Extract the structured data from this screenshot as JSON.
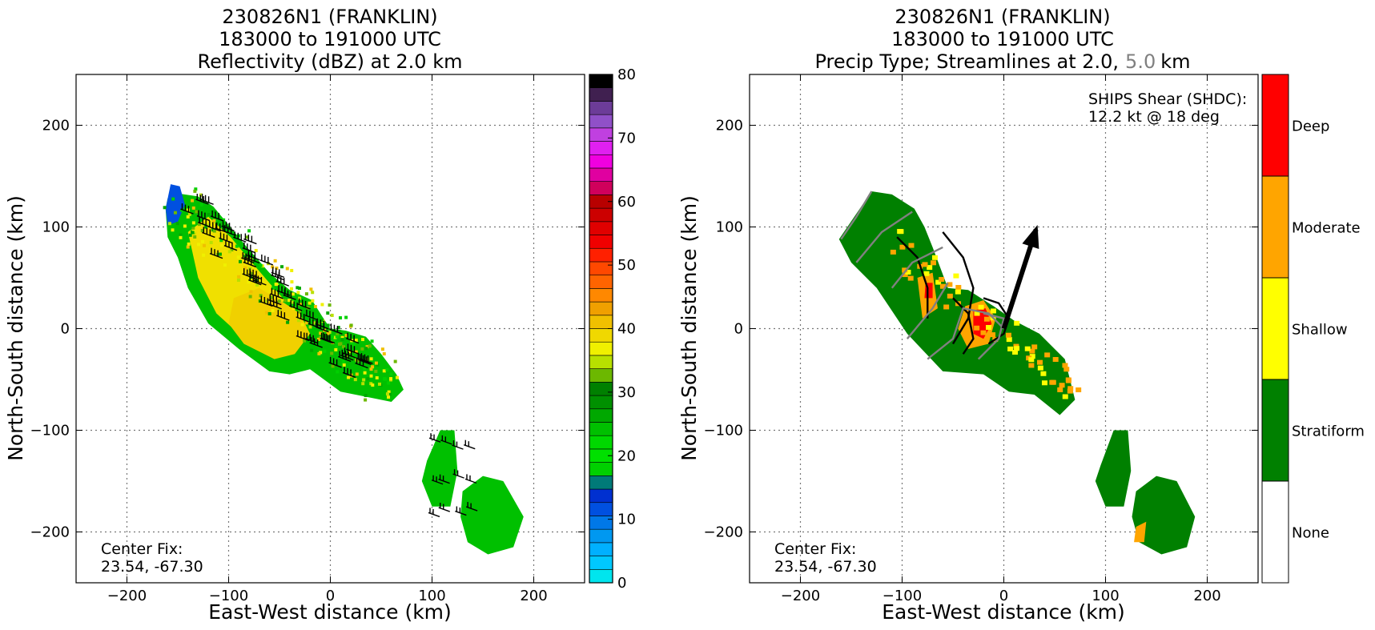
{
  "chart_data": [
    {
      "type": "heatmap",
      "storm_id": "230826N1 (FRANKLIN)",
      "title_lines": [
        "230826N1 (FRANKLIN)",
        "183000 to 191000 UTC",
        "Reflectivity (dBZ) at 2.0 km"
      ],
      "xlabel": "East-West distance (km)",
      "ylabel": "North-South distance (km)",
      "xlim": [
        -250,
        250
      ],
      "ylim": [
        -250,
        250
      ],
      "xticks": [
        -200,
        -100,
        0,
        100,
        200
      ],
      "xtick_labels": [
        "−200",
        "−100",
        "0",
        "100",
        "200"
      ],
      "yticks": [
        -200,
        -100,
        0,
        100,
        200
      ],
      "ytick_labels": [
        "−200",
        "−100",
        "0",
        "100",
        "200"
      ],
      "grid": true,
      "center_fix_label": "Center Fix:",
      "center_fix_value": "23.54, -67.30",
      "colorbar": {
        "min": 0,
        "max": 80,
        "step": 2.5,
        "ticks": [
          0,
          10,
          20,
          30,
          40,
          50,
          60,
          70,
          80
        ],
        "colors": [
          "#00e5ee",
          "#00c8ff",
          "#00b0ff",
          "#0098f0",
          "#0078e8",
          "#0050e0",
          "#0030d0",
          "#007a78",
          "#00d000",
          "#00e000",
          "#00d800",
          "#00c000",
          "#00a800",
          "#009000",
          "#008000",
          "#6cb800",
          "#b8e000",
          "#f0f000",
          "#f0d800",
          "#f0c000",
          "#f0a000",
          "#ff8800",
          "#ff6400",
          "#ff4800",
          "#ff2000",
          "#f00000",
          "#e00000",
          "#cc0000",
          "#b80000",
          "#d0005c",
          "#e000a0",
          "#f000e0",
          "#e020f0",
          "#c040e0",
          "#9050c8",
          "#6c3c98",
          "#402050",
          "#000000"
        ]
      },
      "echo_regions": [
        {
          "name": "main-band",
          "polygon": [
            [
              -162,
              118
            ],
            [
              -160,
              128
            ],
            [
              -150,
              133
            ],
            [
              -130,
              130
            ],
            [
              -115,
              120
            ],
            [
              -100,
              102
            ],
            [
              -82,
              80
            ],
            [
              -60,
              55
            ],
            [
              -40,
              38
            ],
            [
              -18,
              28
            ],
            [
              -8,
              12
            ],
            [
              0,
              0
            ],
            [
              15,
              -2
            ],
            [
              35,
              -8
            ],
            [
              50,
              -25
            ],
            [
              65,
              -45
            ],
            [
              72,
              -60
            ],
            [
              60,
              -72
            ],
            [
              40,
              -68
            ],
            [
              10,
              -62
            ],
            [
              -20,
              -40
            ],
            [
              -40,
              -45
            ],
            [
              -60,
              -42
            ],
            [
              -90,
              -20
            ],
            [
              -120,
              5
            ],
            [
              -140,
              40
            ],
            [
              -150,
              70
            ],
            [
              -160,
              90
            ]
          ],
          "color": "#00c000"
        },
        {
          "name": "core-north",
          "polygon": [
            [
              -140,
              95
            ],
            [
              -120,
              110
            ],
            [
              -98,
              90
            ],
            [
              -78,
              66
            ],
            [
              -60,
              45
            ],
            [
              -45,
              28
            ],
            [
              -62,
              10
            ],
            [
              -90,
              -5
            ],
            [
              -112,
              15
            ],
            [
              -130,
              50
            ]
          ],
          "color": "#f0e000"
        },
        {
          "name": "core-center",
          "polygon": [
            [
              -95,
              30
            ],
            [
              -70,
              40
            ],
            [
              -45,
              25
            ],
            [
              -30,
              15
            ],
            [
              -20,
              -5
            ],
            [
              -35,
              -25
            ],
            [
              -55,
              -30
            ],
            [
              -85,
              -15
            ],
            [
              -100,
              5
            ]
          ],
          "color": "#f0d000"
        },
        {
          "name": "blue-edge",
          "polygon": [
            [
              -162,
              118
            ],
            [
              -157,
              142
            ],
            [
              -148,
              140
            ],
            [
              -143,
              122
            ],
            [
              -150,
              105
            ],
            [
              -160,
              102
            ]
          ],
          "color": "#0050e0"
        },
        {
          "name": "south-cell-a",
          "polygon": [
            [
              95,
              -130
            ],
            [
              108,
              -100
            ],
            [
              122,
              -100
            ],
            [
              125,
              -140
            ],
            [
              118,
              -175
            ],
            [
              100,
              -175
            ],
            [
              90,
              -150
            ]
          ],
          "color": "#00c000"
        },
        {
          "name": "south-cell-b",
          "polygon": [
            [
              130,
              -160
            ],
            [
              150,
              -145
            ],
            [
              170,
              -150
            ],
            [
              190,
              -185
            ],
            [
              180,
              -215
            ],
            [
              155,
              -222
            ],
            [
              135,
              -210
            ],
            [
              128,
              -185
            ]
          ],
          "color": "#00c000"
        }
      ]
    },
    {
      "type": "heatmap",
      "title_lines": [
        "230826N1 (FRANKLIN)",
        "183000 to 191000 UTC",
        "Precip Type; Streamlines at 2.0,",
        "5.0",
        "km"
      ],
      "title_highlight_color": "#808080",
      "xlabel": "East-West distance (km)",
      "ylabel": "North-South distance (km)",
      "xlim": [
        -250,
        250
      ],
      "ylim": [
        -250,
        250
      ],
      "xticks": [
        -200,
        -100,
        0,
        100,
        200
      ],
      "xtick_labels": [
        "−200",
        "−100",
        "0",
        "100",
        "200"
      ],
      "yticks": [
        -200,
        -100,
        0,
        100,
        200
      ],
      "ytick_labels": [
        "−200",
        "−100",
        "0",
        "100",
        "200"
      ],
      "grid": true,
      "center_fix_label": "Center Fix:",
      "center_fix_value": "23.54, -67.30",
      "shear_label": "SHIPS Shear (SHDC):",
      "shear_value": "12.2 kt @ 18 deg",
      "shear_vector": {
        "magnitude_kt": 12.2,
        "direction_deg": 18
      },
      "categories": [
        {
          "name": "Deep",
          "color": "#ff0000"
        },
        {
          "name": "Moderate",
          "color": "#ffa500"
        },
        {
          "name": "Shallow",
          "color": "#ffff00"
        },
        {
          "name": "Stratiform",
          "color": "#008000"
        },
        {
          "name": "None",
          "color": "#ffffff"
        }
      ]
    }
  ]
}
